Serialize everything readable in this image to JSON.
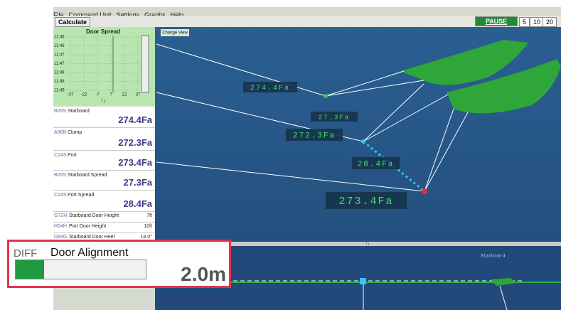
{
  "menu": [
    "File",
    "Command Unit",
    "Settings",
    "Graphs",
    "Help"
  ],
  "toolbar": {
    "calculate": "Calculate",
    "pause": "PAUSE",
    "speeds": [
      "5",
      "10",
      "20"
    ]
  },
  "graph": {
    "title": "Door Spread",
    "y_labels": [
      "11:46",
      "11:46",
      "11:47",
      "11:47",
      "11:48",
      "11:48",
      "11:49"
    ],
    "x_labels": [
      "-37",
      "-22",
      "-7",
      "7",
      "22",
      "37"
    ]
  },
  "sensors": [
    {
      "code": "B28S",
      "name": "Starboard",
      "value": "274.4Fa"
    },
    {
      "code": "A96N",
      "name": "Clump",
      "value": "272.3Fa"
    },
    {
      "code": "C24S",
      "name": "Port",
      "value": "273.4Fa"
    },
    {
      "code": "B28S",
      "name": "Starboard Spread",
      "value": "27.3Fa"
    },
    {
      "code": "C24S",
      "name": "Port Spread",
      "value": "28.4Fa"
    }
  ],
  "details": [
    {
      "code": "G72H",
      "name": "Starboard Door Height",
      "value": "7ft"
    },
    {
      "code": "H04H",
      "name": "Port Door Height",
      "value": "10ft"
    },
    {
      "code": "D84G",
      "name": "Starboard Door Heel",
      "value": "18.0°"
    }
  ],
  "view": {
    "button": "Change View",
    "labels": [
      "274.4Fa",
      "27.3Fa",
      "272.3Fa",
      "28.4Fa",
      "273.4Fa"
    ]
  },
  "lower_view": {
    "label": "Starboard"
  },
  "alert": {
    "tag": "DIFF",
    "title": "Door Alignment",
    "value": "2.0m"
  }
}
